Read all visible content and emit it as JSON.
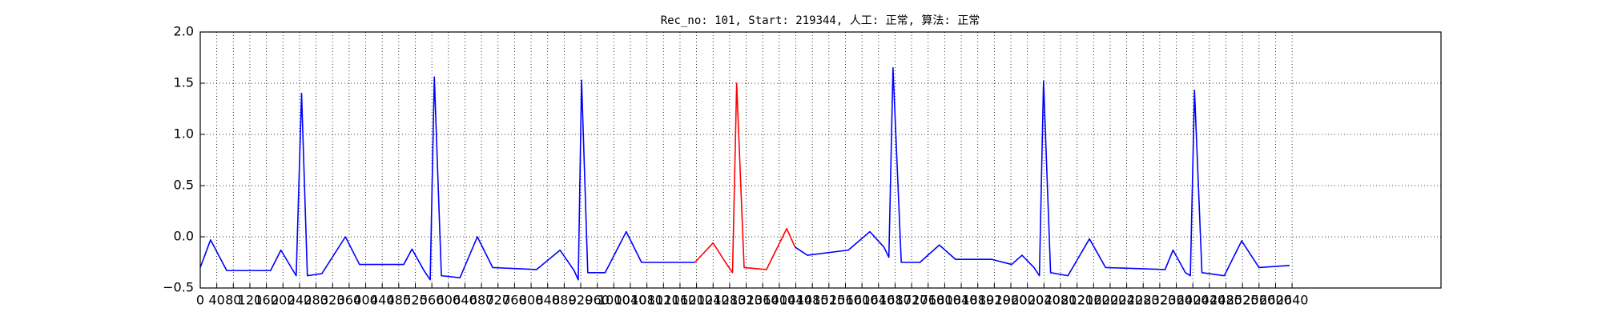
{
  "chart_data": {
    "type": "line",
    "title": "Rec_no: 101, Start: 219344, 人工: 正常, 算法: 正常",
    "x": [
      0,
      25,
      64,
      170,
      195,
      220,
      232,
      245,
      259,
      294,
      351,
      385,
      492,
      512,
      541,
      556,
      566,
      583,
      628,
      670,
      707,
      813,
      870,
      904,
      914,
      922,
      937,
      979,
      1030,
      1067,
      1196,
      1240,
      1270,
      1287,
      1297,
      1315,
      1369,
      1418,
      1438,
      1468,
      1567,
      1619,
      1653,
      1665,
      1675,
      1695,
      1740,
      1787,
      1826,
      1913,
      1962,
      1987,
      2016,
      2029,
      2039,
      2056,
      2098,
      2150,
      2189,
      2333,
      2352,
      2382,
      2394,
      2404,
      2422,
      2476,
      2518,
      2560,
      2634
    ],
    "series": [
      {
        "color": "#0000ff",
        "values": [
          -0.3,
          -0.03,
          -0.33,
          -0.33,
          -0.13,
          -0.3,
          -0.38,
          1.4,
          -0.38,
          -0.36,
          0.0,
          -0.27,
          -0.27,
          -0.12,
          -0.33,
          -0.42,
          1.56,
          -0.38,
          -0.4,
          0.0,
          -0.3,
          -0.32,
          -0.13,
          -0.33,
          -0.42,
          1.53,
          -0.35,
          -0.35,
          0.05,
          -0.25,
          -0.25,
          null,
          null,
          null,
          null,
          null,
          null,
          null,
          -0.1,
          -0.18,
          -0.13,
          0.05,
          -0.1,
          -0.2,
          1.65,
          -0.25,
          -0.25,
          -0.08,
          -0.22,
          -0.22,
          -0.27,
          -0.18,
          -0.3,
          -0.38,
          1.52,
          -0.35,
          -0.38,
          -0.02,
          -0.3,
          -0.32,
          -0.13,
          -0.35,
          -0.38,
          1.43,
          -0.35,
          -0.38,
          -0.04,
          -0.3,
          -0.28
        ]
      },
      {
        "color": "#ff0000",
        "values": [
          null,
          null,
          null,
          null,
          null,
          null,
          null,
          null,
          null,
          null,
          null,
          null,
          null,
          null,
          null,
          null,
          null,
          null,
          null,
          null,
          null,
          null,
          null,
          null,
          null,
          null,
          null,
          null,
          null,
          null,
          -0.25,
          -0.06,
          -0.25,
          -0.35,
          1.5,
          -0.3,
          -0.32,
          0.08,
          -0.1,
          null,
          null,
          null,
          null,
          null,
          null,
          null,
          null,
          null,
          null,
          null,
          null,
          null,
          null,
          null,
          null,
          null,
          null,
          null,
          null,
          null,
          null,
          null,
          null,
          null,
          null,
          null,
          null,
          null,
          null
        ]
      }
    ],
    "xlim": [
      0,
      3000
    ],
    "xticks": [
      0,
      40,
      80,
      120,
      160,
      200,
      240,
      280,
      320,
      360,
      400,
      440,
      480,
      520,
      560,
      600,
      640,
      680,
      720,
      760,
      800,
      840,
      880,
      920,
      960,
      1000,
      1040,
      1080,
      1120,
      1160,
      1200,
      1240,
      1280,
      1320,
      1360,
      1400,
      1440,
      1480,
      1520,
      1560,
      1600,
      1640,
      1680,
      1720,
      1760,
      1800,
      1840,
      1880,
      1920,
      1960,
      2000,
      2040,
      2080,
      2120,
      2160,
      2200,
      2240,
      2280,
      2320,
      2360,
      2400,
      2440,
      2480,
      2520,
      2560,
      2600,
      2640
    ],
    "ylim": [
      -0.5,
      2.0
    ],
    "yticks": [
      {
        "value": -0.5,
        "label": "−0.5"
      },
      {
        "value": 0,
        "label": "0.0"
      },
      {
        "value": 0.5,
        "label": "0.5"
      },
      {
        "value": 1,
        "label": "1.0"
      },
      {
        "value": 1.5,
        "label": "1.5"
      },
      {
        "value": 2,
        "label": "2.0"
      }
    ],
    "grid": true
  }
}
